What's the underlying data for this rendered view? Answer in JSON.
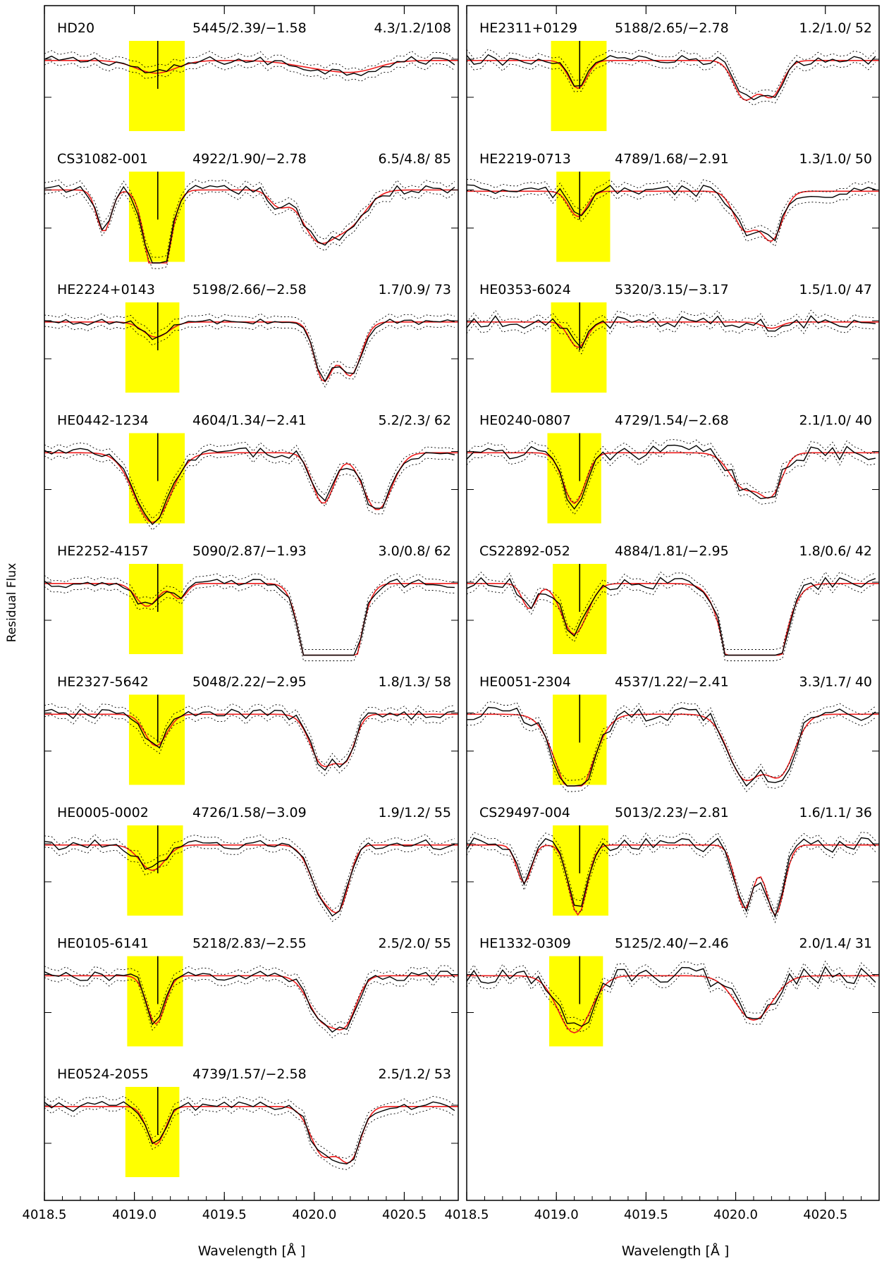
{
  "figure": {
    "ylabel": "Residual Flux",
    "xlabel": "Wavelength [Å ]"
  },
  "colors": {
    "observed": "#000000",
    "synthetic": "#ee1c1c",
    "highlight": "#ffff00"
  },
  "chart_data": {
    "type": "line",
    "xlabel": "Wavelength [Å ]",
    "ylabel": "Residual Flux",
    "xlim": [
      4018.5,
      4020.8
    ],
    "xticks_left": [
      4018.5,
      4019.0,
      4019.5,
      4020.0,
      4020.5
    ],
    "xticks_left_labels": [
      "4018.5",
      "4019.0",
      "4019.5",
      "4020.0",
      "4020.5"
    ],
    "xticks_right": [
      4018.5,
      4019.0,
      4019.5,
      4020.0,
      4020.5
    ],
    "xticks_right_labels": [
      "4018.5",
      "4019.0",
      "4019.5",
      "4020.0",
      "4020.5"
    ],
    "line_marker": 4019.13,
    "panels": [
      {
        "col": 0,
        "row": 0,
        "name": "HD20",
        "params": "5445/2.39/−1.58",
        "stats": "4.3/1.2/108",
        "hl": [
          4018.97,
          4019.28
        ],
        "line": [
          [
            4018.6,
            0.96
          ],
          [
            4018.8,
            0.94
          ],
          [
            4019.13,
            0.72
          ],
          [
            4019.5,
            0.98
          ],
          [
            4020.2,
            0.82
          ],
          [
            4020.55,
            0.99
          ]
        ],
        "dips": [
          [
            4019.12,
            0.1,
            0.11
          ],
          [
            4020.05,
            0.06,
            0.16
          ],
          [
            4020.25,
            0.06,
            0.12
          ]
        ],
        "cont": 0.99,
        "noise": 0.035
      },
      {
        "col": 0,
        "row": 1,
        "name": "CS31082-001",
        "params": "4922/1.90/−2.78",
        "stats": "6.5/4.8/ 85",
        "hl": [
          4018.97,
          4019.28
        ],
        "dips": [
          [
            4018.83,
            0.33,
            0.04
          ],
          [
            4019.13,
            0.85,
            0.06
          ],
          [
            4019.8,
            0.12,
            0.05
          ],
          [
            4020.02,
            0.38,
            0.09
          ],
          [
            4020.2,
            0.25,
            0.09
          ]
        ],
        "cont": 1.0,
        "noise": 0.04
      },
      {
        "col": 0,
        "row": 2,
        "name": "HE2224+0143",
        "params": "5198/2.66/−2.58",
        "stats": "1.7/0.9/ 73",
        "hl": [
          4018.95,
          4019.25
        ],
        "dips": [
          [
            4019.12,
            0.12,
            0.07
          ],
          [
            4020.05,
            0.45,
            0.05
          ],
          [
            4020.2,
            0.42,
            0.06
          ]
        ],
        "cont": 0.99,
        "noise": 0.025
      },
      {
        "col": 0,
        "row": 3,
        "name": "HE0442-1234",
        "params": "4604/1.34/−2.41",
        "stats": "5.2/2.3/ 62",
        "hl": [
          4018.97,
          4019.28
        ],
        "dips": [
          [
            4019.1,
            0.55,
            0.1
          ],
          [
            4020.05,
            0.4,
            0.06
          ],
          [
            4020.35,
            0.45,
            0.08
          ]
        ],
        "cont": 0.99,
        "noise": 0.04
      },
      {
        "col": 0,
        "row": 4,
        "name": "HE2252-4157",
        "params": "5090/2.87/−1.93",
        "stats": "3.0/0.8/ 62",
        "hl": [
          4018.97,
          4019.27
        ],
        "dips": [
          [
            4019.07,
            0.18,
            0.06
          ],
          [
            4019.25,
            0.12,
            0.04
          ],
          [
            4020.0,
            0.85,
            0.07
          ],
          [
            4020.18,
            0.8,
            0.07
          ]
        ],
        "cont": 0.99,
        "noise": 0.035
      },
      {
        "col": 0,
        "row": 5,
        "name": "HE2327-5642",
        "params": "5048/2.22/−2.95",
        "stats": "1.8/1.3/ 58",
        "hl": [
          4018.97,
          4019.28
        ],
        "dips": [
          [
            4019.12,
            0.25,
            0.06
          ],
          [
            4020.05,
            0.4,
            0.07
          ],
          [
            4020.18,
            0.3,
            0.05
          ]
        ],
        "cont": 0.99,
        "noise": 0.04
      },
      {
        "col": 0,
        "row": 6,
        "name": "HE0005-0002",
        "params": "4726/1.58/−3.09",
        "stats": "1.9/1.2/ 55",
        "hl": [
          4018.96,
          4019.27
        ],
        "dips": [
          [
            4019.1,
            0.2,
            0.07
          ],
          [
            4020.05,
            0.4,
            0.07
          ],
          [
            4020.15,
            0.35,
            0.05
          ]
        ],
        "cont": 0.99,
        "noise": 0.04
      },
      {
        "col": 0,
        "row": 7,
        "name": "HE0105-6141",
        "params": "5218/2.83/−2.55",
        "stats": "2.5/2.0/ 55",
        "hl": [
          4018.96,
          4019.27
        ],
        "dips": [
          [
            4019.12,
            0.38,
            0.05
          ],
          [
            4020.05,
            0.35,
            0.08
          ],
          [
            4020.18,
            0.3,
            0.06
          ]
        ],
        "cont": 0.99,
        "noise": 0.04
      },
      {
        "col": 0,
        "row": 8,
        "name": "HE0524-2055",
        "params": "4739/1.57/−2.58",
        "stats": "2.5/1.2/ 53",
        "hl": [
          4018.95,
          4019.25
        ],
        "dips": [
          [
            4019.12,
            0.3,
            0.05
          ],
          [
            4020.05,
            0.38,
            0.07
          ],
          [
            4020.2,
            0.4,
            0.06
          ]
        ],
        "cont": 0.99,
        "noise": 0.04
      },
      {
        "col": 1,
        "row": 0,
        "name": "HE2311+0129",
        "params": "5188/2.65/−2.78",
        "stats": "1.2/1.0/ 52",
        "hl": [
          4018.97,
          4019.28
        ],
        "dips": [
          [
            4019.12,
            0.22,
            0.05
          ],
          [
            4020.05,
            0.3,
            0.06
          ],
          [
            4020.2,
            0.28,
            0.06
          ]
        ],
        "cont": 0.99,
        "noise": 0.045
      },
      {
        "col": 1,
        "row": 1,
        "name": "HE2219-0713",
        "params": "4789/1.68/−2.91",
        "stats": "1.3/1.0/ 50",
        "hl": [
          4019.0,
          4019.3
        ],
        "dips": [
          [
            4019.12,
            0.2,
            0.05
          ],
          [
            4020.05,
            0.3,
            0.06
          ],
          [
            4020.2,
            0.38,
            0.06
          ]
        ],
        "cont": 0.99,
        "noise": 0.05
      },
      {
        "col": 1,
        "row": 2,
        "name": "HE0353-6024",
        "params": "5320/3.15/−3.17",
        "stats": "1.5/1.0/ 47",
        "hl": [
          4018.97,
          4019.28
        ],
        "dips": [
          [
            4019.12,
            0.2,
            0.05
          ],
          [
            4020.2,
            0.05,
            0.05
          ]
        ],
        "cont": 0.99,
        "noise": 0.05
      },
      {
        "col": 1,
        "row": 3,
        "name": "HE0240-0807",
        "params": "4729/1.54/−2.68",
        "stats": "2.1/1.0/ 40",
        "hl": [
          4018.95,
          4019.25
        ],
        "dips": [
          [
            4019.1,
            0.4,
            0.06
          ],
          [
            4020.05,
            0.28,
            0.08
          ],
          [
            4020.2,
            0.3,
            0.06
          ]
        ],
        "cont": 0.99,
        "noise": 0.06
      },
      {
        "col": 1,
        "row": 4,
        "name": "CS22892-052",
        "params": "4884/1.81/−2.95",
        "stats": "1.8/0.6/ 42",
        "hl": [
          4018.98,
          4019.28
        ],
        "dips": [
          [
            4018.85,
            0.2,
            0.04
          ],
          [
            4019.1,
            0.4,
            0.07
          ],
          [
            4020.1,
            1.6,
            0.11
          ]
        ],
        "cont": 0.99,
        "noise": 0.05,
        "clip": true
      },
      {
        "col": 1,
        "row": 5,
        "name": "HE0051-2304",
        "params": "4537/1.22/−2.41",
        "stats": "3.3/1.7/ 40",
        "hl": [
          4018.98,
          4019.28
        ],
        "dips": [
          [
            4019.1,
            0.65,
            0.1
          ],
          [
            4020.05,
            0.5,
            0.09
          ],
          [
            4020.25,
            0.45,
            0.08
          ]
        ],
        "cont": 0.99,
        "noise": 0.06
      },
      {
        "col": 1,
        "row": 6,
        "name": "CS29497-004",
        "params": "5013/2.23/−2.81",
        "stats": "1.6/1.1/ 36",
        "hl": [
          4018.98,
          4019.29
        ],
        "dips": [
          [
            4018.82,
            0.3,
            0.04
          ],
          [
            4019.12,
            0.55,
            0.05
          ],
          [
            4020.05,
            0.5,
            0.05
          ],
          [
            4020.22,
            0.55,
            0.05
          ]
        ],
        "cont": 0.99,
        "noise": 0.06
      },
      {
        "col": 1,
        "row": 7,
        "name": "HE1332-0309",
        "params": "5125/2.40/−2.46",
        "stats": "2.0/1.4/ 31",
        "hl": [
          4018.96,
          4019.26
        ],
        "dips": [
          [
            4019.1,
            0.45,
            0.09
          ],
          [
            4020.1,
            0.35,
            0.1
          ]
        ],
        "cont": 0.99,
        "noise": 0.08
      }
    ]
  }
}
